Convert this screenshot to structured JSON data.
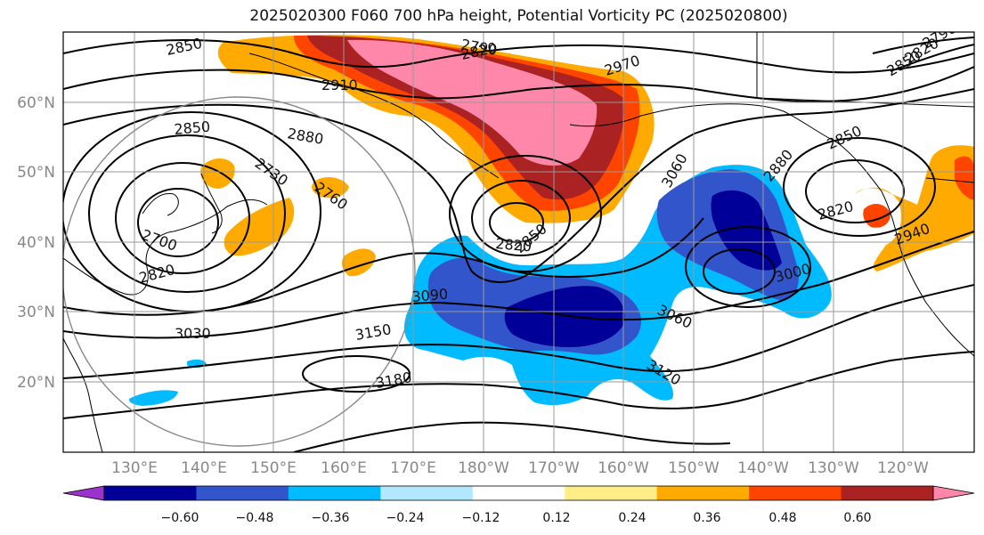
{
  "title": "2025020300 F060 700 hPa height, Potential Vorticity PC (2025020800)",
  "lat_labels": [
    "60°N",
    "50°N",
    "40°N",
    "30°N",
    "20°N"
  ],
  "lon_labels": [
    "130°E",
    "140°E",
    "150°E",
    "160°E",
    "170°E",
    "180°W",
    "170°W",
    "160°W",
    "150°W",
    "140°W",
    "130°W",
    "120°W"
  ],
  "contour_labels": [
    "2850",
    "2790",
    "2820",
    "2910",
    "2970",
    "2850",
    "2880",
    "2730",
    "2760",
    "2700",
    "2820",
    "2850",
    "2880",
    "2820",
    "2940",
    "3060",
    "3000",
    "2820",
    "2850",
    "3090",
    "3030",
    "3150",
    "3180",
    "3060",
    "3120",
    "2790",
    "2820",
    "2850"
  ],
  "colorbar": {
    "tick_labels": [
      "−0.60",
      "−0.48",
      "−0.36",
      "−0.24",
      "−0.12",
      "0.12",
      "0.24",
      "0.36",
      "0.48",
      "0.60"
    ],
    "colors": [
      "#9933cc",
      "#000099",
      "#3355cc",
      "#00bbff",
      "#b3e6ff",
      "#ffffff",
      "#ffee88",
      "#ffaa00",
      "#ff4400",
      "#aa2222",
      "#ff88aa"
    ]
  },
  "colors": {
    "negative_strong": "#000099",
    "negative_mid": "#3355cc",
    "negative_light": "#00bbff",
    "positive_light": "#ffaa00",
    "positive_mid": "#ff4400",
    "positive_strong": "#aa2222",
    "positive_max": "#ff88aa"
  }
}
